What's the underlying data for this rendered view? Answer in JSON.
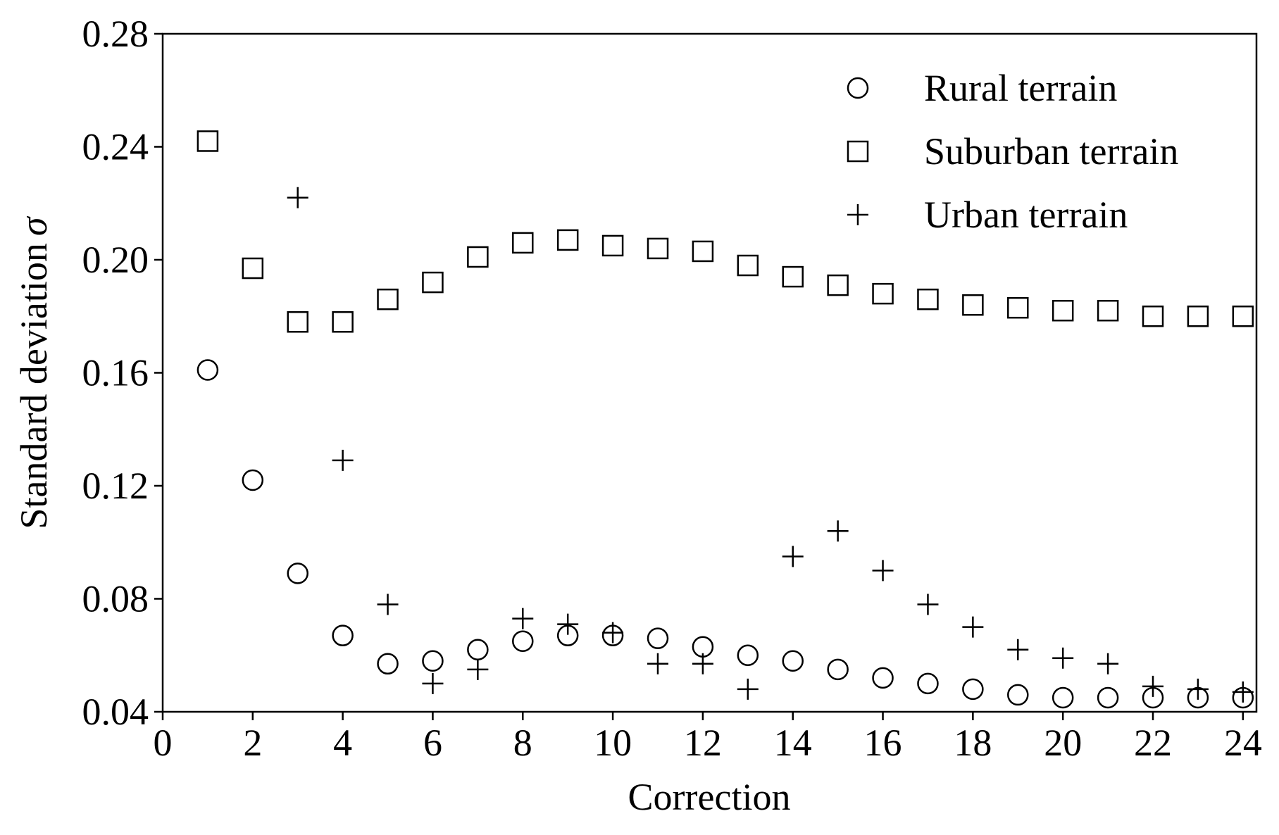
{
  "chart_data": {
    "type": "scatter",
    "title": "",
    "xlabel": "Correction",
    "ylabel": "Standard deviation",
    "ylabel_symbol": "σ",
    "xlim": [
      0,
      24.3
    ],
    "ylim": [
      0.04,
      0.28
    ],
    "x_ticks": [
      "0",
      "2",
      "4",
      "6",
      "8",
      "10",
      "12",
      "14",
      "16",
      "18",
      "20",
      "22",
      "24"
    ],
    "y_ticks": [
      "0.04",
      "0.08",
      "0.12",
      "0.16",
      "0.20",
      "0.24",
      "0.28"
    ],
    "grid": false,
    "legend_position": "top-right",
    "series": [
      {
        "name": "Rural terrain",
        "marker": "circle",
        "x": [
          1,
          2,
          3,
          4,
          5,
          6,
          7,
          8,
          9,
          10,
          11,
          12,
          13,
          14,
          15,
          16,
          17,
          18,
          19,
          20,
          21,
          22,
          23,
          24
        ],
        "y": [
          0.161,
          0.122,
          0.089,
          0.067,
          0.057,
          0.058,
          0.062,
          0.065,
          0.067,
          0.067,
          0.066,
          0.063,
          0.06,
          0.058,
          0.055,
          0.052,
          0.05,
          0.048,
          0.046,
          0.045,
          0.045,
          0.045,
          0.045,
          0.045
        ]
      },
      {
        "name": "Suburban terrain",
        "marker": "square",
        "x": [
          1,
          2,
          3,
          4,
          5,
          6,
          7,
          8,
          9,
          10,
          11,
          12,
          13,
          14,
          15,
          16,
          17,
          18,
          19,
          20,
          21,
          22,
          23,
          24
        ],
        "y": [
          0.242,
          0.197,
          0.178,
          0.178,
          0.186,
          0.192,
          0.201,
          0.206,
          0.207,
          0.205,
          0.204,
          0.203,
          0.198,
          0.194,
          0.191,
          0.188,
          0.186,
          0.184,
          0.183,
          0.182,
          0.182,
          0.18,
          0.18,
          0.18
        ]
      },
      {
        "name": "Urban terrain",
        "marker": "plus",
        "x": [
          3,
          4,
          5,
          6,
          7,
          8,
          9,
          10,
          11,
          12,
          13,
          14,
          15,
          16,
          17,
          18,
          19,
          20,
          21,
          22,
          23,
          24
        ],
        "y": [
          0.222,
          0.129,
          0.078,
          0.05,
          0.055,
          0.073,
          0.071,
          0.068,
          0.057,
          0.057,
          0.048,
          0.095,
          0.104,
          0.09,
          0.078,
          0.07,
          0.062,
          0.059,
          0.057,
          0.049,
          0.048,
          0.047
        ]
      }
    ]
  }
}
